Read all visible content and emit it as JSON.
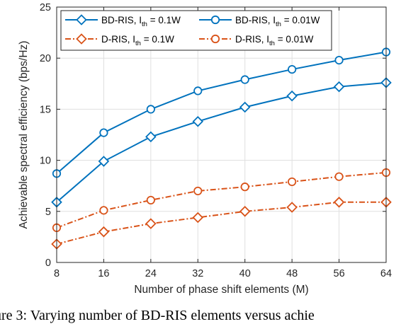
{
  "chart_data": {
    "type": "line",
    "title": "",
    "xlabel": "Number of phase shift elements (M)",
    "ylabel": "Achievable spectral efficiency (bps/Hz)",
    "x": [
      8,
      16,
      24,
      32,
      40,
      48,
      56,
      64
    ],
    "xticks": [
      "8",
      "16",
      "24",
      "32",
      "40",
      "48",
      "56",
      "64"
    ],
    "yticks": [
      "0",
      "5",
      "10",
      "15",
      "20",
      "25"
    ],
    "xlim": [
      8,
      64
    ],
    "ylim": [
      0,
      25
    ],
    "grid": true,
    "legend_position": "top-left",
    "legend": [
      {
        "base": "BD-RIS, I",
        "sub": "th",
        "rest": " = 0.1W"
      },
      {
        "base": "BD-RIS, I",
        "sub": "th",
        "rest": " = 0.01W"
      },
      {
        "base": "D-RIS, I",
        "sub": "th",
        "rest": " = 0.1W"
      },
      {
        "base": "D-RIS, I",
        "sub": "th",
        "rest": " = 0.01W"
      }
    ],
    "series": [
      {
        "values": [
          5.9,
          9.9,
          12.3,
          13.8,
          15.2,
          16.3,
          17.2,
          17.6
        ],
        "color": "#0072BD",
        "marker": "diamond",
        "linestyle": "solid"
      },
      {
        "values": [
          8.7,
          12.7,
          15.0,
          16.8,
          17.9,
          18.9,
          19.8,
          20.6
        ],
        "color": "#0072BD",
        "marker": "circle",
        "linestyle": "solid"
      },
      {
        "values": [
          1.8,
          3.0,
          3.8,
          4.4,
          5.0,
          5.4,
          5.9,
          5.9
        ],
        "color": "#D95319",
        "marker": "diamond",
        "linestyle": "dashdot"
      },
      {
        "values": [
          3.4,
          5.1,
          6.1,
          7.0,
          7.4,
          7.9,
          8.4,
          8.8
        ],
        "color": "#D95319",
        "marker": "circle",
        "linestyle": "dashdot"
      }
    ]
  },
  "caption": "ure 3: Varying number of BD-RIS elements versus achie"
}
